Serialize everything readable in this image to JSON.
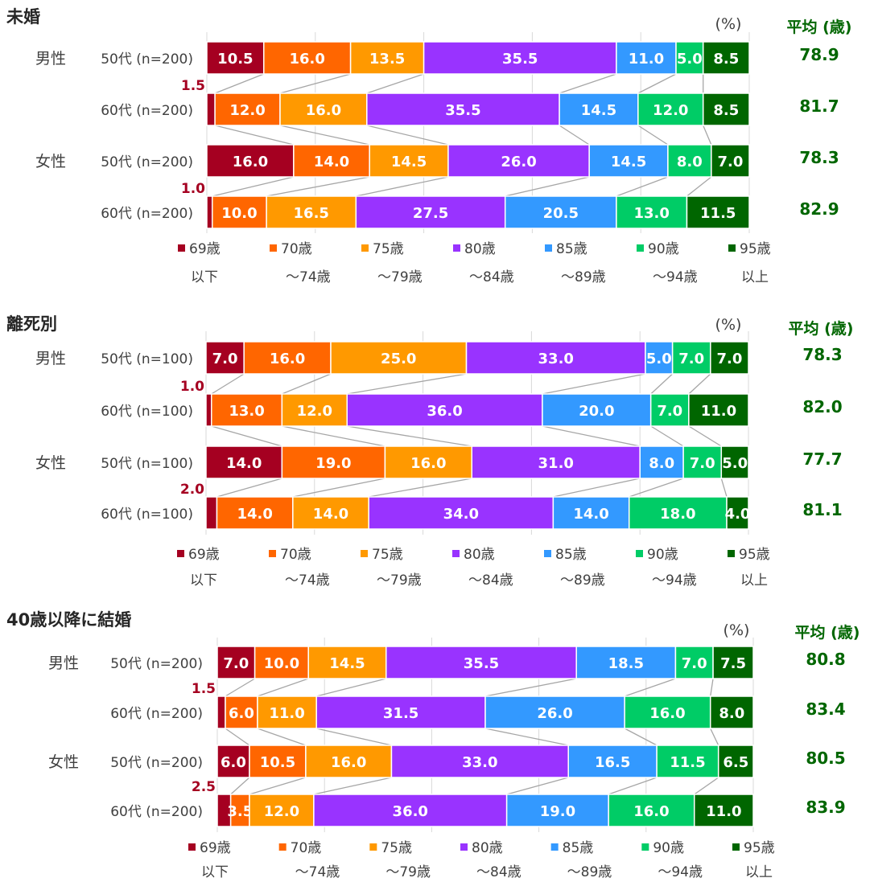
{
  "unit_label": "(%)",
  "avg_header": "平均 (歳)",
  "categories": [
    {
      "top": "69歳",
      "bottom": "以下"
    },
    {
      "top": "70歳",
      "bottom": "〜74歳"
    },
    {
      "top": "75歳",
      "bottom": "〜79歳"
    },
    {
      "top": "80歳",
      "bottom": "〜84歳"
    },
    {
      "top": "85歳",
      "bottom": "〜89歳"
    },
    {
      "top": "90歳",
      "bottom": "〜94歳"
    },
    {
      "top": "95歳",
      "bottom": "以上"
    }
  ],
  "colors": [
    "#a50021",
    "#ff6600",
    "#ff9900",
    "#9933ff",
    "#3399ff",
    "#00cc66",
    "#006600"
  ],
  "avg_color": "#006600",
  "small_label_color": "#a50021",
  "chart_data": [
    {
      "type": "bar",
      "stacked": "horizontal-100%",
      "title": "未婚",
      "xlim": [
        0,
        100
      ],
      "rows": [
        {
          "gender": "男性",
          "group": "50代 (n=200)",
          "values": [
            10.5,
            16.0,
            13.5,
            35.5,
            11.0,
            5.0,
            8.5
          ],
          "avg": "78.9"
        },
        {
          "gender": "",
          "group": "60代 (n=200)",
          "values": [
            1.5,
            12.0,
            16.0,
            35.5,
            14.5,
            12.0,
            8.5
          ],
          "avg": "81.7"
        },
        {
          "gender": "女性",
          "group": "50代 (n=200)",
          "values": [
            16.0,
            14.0,
            14.5,
            26.0,
            14.5,
            8.0,
            7.0
          ],
          "avg": "78.3"
        },
        {
          "gender": "",
          "group": "60代 (n=200)",
          "values": [
            1.0,
            10.0,
            16.5,
            27.5,
            20.5,
            13.0,
            11.5
          ],
          "avg": "82.9"
        }
      ]
    },
    {
      "type": "bar",
      "stacked": "horizontal-100%",
      "title": "離死別",
      "xlim": [
        0,
        100
      ],
      "rows": [
        {
          "gender": "男性",
          "group": "50代 (n=100)",
          "values": [
            7.0,
            16.0,
            25.0,
            33.0,
            5.0,
            7.0,
            7.0
          ],
          "avg": "78.3"
        },
        {
          "gender": "",
          "group": "60代 (n=100)",
          "values": [
            1.0,
            13.0,
            12.0,
            36.0,
            20.0,
            7.0,
            11.0
          ],
          "avg": "82.0"
        },
        {
          "gender": "女性",
          "group": "50代 (n=100)",
          "values": [
            14.0,
            19.0,
            16.0,
            31.0,
            8.0,
            7.0,
            5.0
          ],
          "avg": "77.7"
        },
        {
          "gender": "",
          "group": "60代 (n=100)",
          "values": [
            2.0,
            14.0,
            14.0,
            34.0,
            14.0,
            18.0,
            4.0
          ],
          "avg": "81.1"
        }
      ]
    },
    {
      "type": "bar",
      "stacked": "horizontal-100%",
      "title": "40歳以降に結婚",
      "xlim": [
        0,
        100
      ],
      "rows": [
        {
          "gender": "男性",
          "group": "50代 (n=200)",
          "values": [
            7.0,
            10.0,
            14.5,
            35.5,
            18.5,
            7.0,
            7.5
          ],
          "avg": "80.8"
        },
        {
          "gender": "",
          "group": "60代 (n=200)",
          "values": [
            1.5,
            6.0,
            11.0,
            31.5,
            26.0,
            16.0,
            8.0
          ],
          "avg": "83.4"
        },
        {
          "gender": "女性",
          "group": "50代 (n=200)",
          "values": [
            6.0,
            10.5,
            16.0,
            33.0,
            16.5,
            11.5,
            6.5
          ],
          "avg": "80.5"
        },
        {
          "gender": "",
          "group": "60代 (n=200)",
          "values": [
            2.5,
            3.5,
            12.0,
            36.0,
            19.0,
            16.0,
            11.0
          ],
          "avg": "83.9"
        }
      ]
    }
  ]
}
